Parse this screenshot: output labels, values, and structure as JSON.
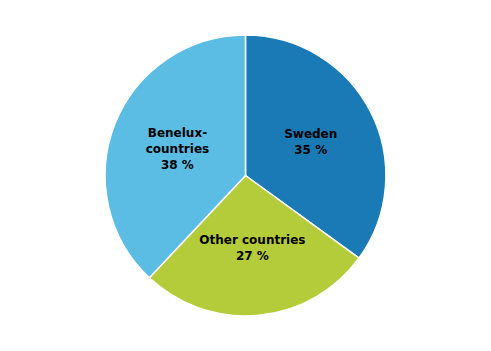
{
  "chart_data": {
    "type": "pie",
    "categories": [
      "Sweden",
      "Other countries",
      "Benelux-\ncountries"
    ],
    "values": [
      35,
      27,
      38
    ],
    "value_labels": [
      "35 %",
      "27 %",
      "38 %"
    ],
    "colors": [
      "#1a7ab5",
      "#b5cc3a",
      "#5bbce4"
    ],
    "data_labels": true
  }
}
